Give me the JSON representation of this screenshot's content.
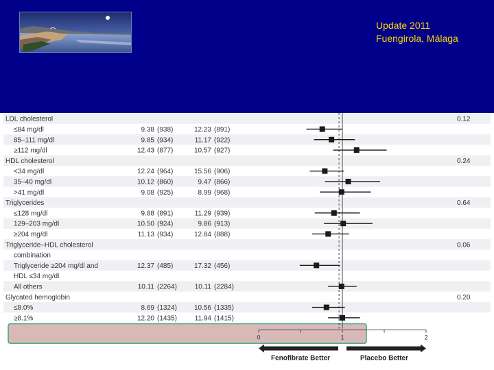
{
  "header": {
    "conference_line1": "Update 2011",
    "conference_line2": "Fuengirola, Málaga",
    "background_color": "#00008b",
    "text_color": "#ffd700"
  },
  "chart_data": {
    "type": "forest",
    "x": {
      "min": 0,
      "max": 2,
      "ticks": [
        "0",
        "1",
        "2"
      ],
      "reference_line": 1,
      "overall_estimate_line": 0.96
    },
    "direction_labels": {
      "left": "Fenofibrate Better",
      "right": "Placebo Better"
    },
    "highlight_rows": [
      20,
      21
    ],
    "rows": [
      {
        "label": "LDL cholesterol",
        "header": true,
        "p": "0.12"
      },
      {
        "label": "≤84 mg/dl",
        "fen": "9.38",
        "fen_n": "(938)",
        "pla": "12.23",
        "pla_n": "(891)",
        "hr": 0.76,
        "lo": 0.57,
        "hi": 1.0
      },
      {
        "label": "85–111 mg/dl",
        "fen": "9.85",
        "fen_n": "(934)",
        "pla": "11.17",
        "pla_n": "(922)",
        "hr": 0.87,
        "lo": 0.66,
        "hi": 1.15
      },
      {
        "label": "≥112 mg/dl",
        "fen": "12.43",
        "fen_n": "(877)",
        "pla": "10.57",
        "pla_n": "(927)",
        "hr": 1.17,
        "lo": 0.89,
        "hi": 1.53
      },
      {
        "label": "HDL cholesterol",
        "header": true,
        "p": "0.24"
      },
      {
        "label": "<34 mg/dl",
        "fen": "12.24",
        "fen_n": "(964)",
        "pla": "15.56",
        "pla_n": "(906)",
        "hr": 0.79,
        "lo": 0.61,
        "hi": 1.02
      },
      {
        "label": "35–40 mg/dl",
        "fen": "10.12",
        "fen_n": "(860)",
        "pla": "9.47",
        "pla_n": "(866)",
        "hr": 1.07,
        "lo": 0.79,
        "hi": 1.45
      },
      {
        "label": ">41 mg/dl",
        "fen": "9.08",
        "fen_n": "(925)",
        "pla": "8.99",
        "pla_n": "(968)",
        "hr": 0.99,
        "lo": 0.73,
        "hi": 1.34
      },
      {
        "label": "Triglycerides",
        "header": true,
        "p": "0.64"
      },
      {
        "label": "≤128 mg/dl",
        "fen": "9.88",
        "fen_n": "(891)",
        "pla": "11.29",
        "pla_n": "(939)",
        "hr": 0.9,
        "lo": 0.67,
        "hi": 1.21
      },
      {
        "label": "129–203 mg/dl",
        "fen": "10.50",
        "fen_n": "(924)",
        "pla": "9.86",
        "pla_n": "(913)",
        "hr": 1.01,
        "lo": 0.78,
        "hi": 1.36
      },
      {
        "label": "≥204 mg/dl",
        "fen": "11.13",
        "fen_n": "(934)",
        "pla": "12.84",
        "pla_n": "(888)",
        "hr": 0.83,
        "lo": 0.64,
        "hi": 1.08
      },
      {
        "label": "Triglyceride–HDL cholesterol",
        "header": true,
        "p": "0.06"
      },
      {
        "label": "combination",
        "indent": true
      },
      {
        "label": "Triglyceride ≥204 mg/dl and",
        "fen": "12.37",
        "fen_n": "(485)",
        "pla": "17.32",
        "pla_n": "(456)",
        "hr": 0.69,
        "lo": 0.49,
        "hi": 0.97
      },
      {
        "label": "HDL ≤34 mg/dl",
        "cont": true
      },
      {
        "label": "All others",
        "fen": "10.11",
        "fen_n": "(2264)",
        "pla": "10.11",
        "pla_n": "(2284)",
        "hr": 0.99,
        "lo": 0.83,
        "hi": 1.17
      },
      {
        "label": "Glycated hemoglobin",
        "header": true,
        "p": "0.20"
      },
      {
        "label": "≤8.0%",
        "fen": "8.69",
        "fen_n": "(1324)",
        "pla": "10.56",
        "pla_n": "(1335)",
        "hr": 0.81,
        "lo": 0.64,
        "hi": 1.03
      },
      {
        "label": "≥8.1%",
        "fen": "12.20",
        "fen_n": "(1435)",
        "pla": "11.94",
        "pla_n": "(1415)",
        "hr": 1.0,
        "lo": 0.83,
        "hi": 1.21
      }
    ]
  }
}
